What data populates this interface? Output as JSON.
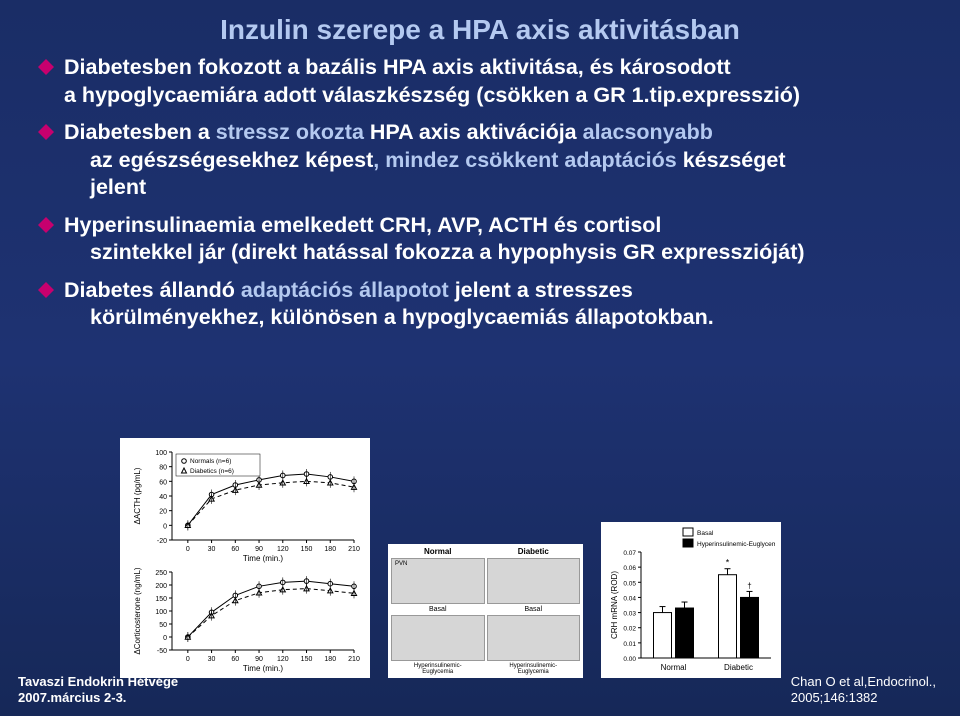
{
  "title": "Inzulin szerepe a HPA axis aktivitásban",
  "bullets": [
    {
      "lines": [
        {
          "segments": [
            {
              "text": "Diabetesben fokozott a bazális HPA axis aktivitása, és károsodott",
              "color": "white"
            }
          ]
        },
        {
          "segments": [
            {
              "text": "a hypoglycaemiára adott válaszkészség (csökken a GR 1.tip.expresszió)",
              "color": "white"
            }
          ]
        }
      ]
    },
    {
      "lines": [
        {
          "segments": [
            {
              "text": "Diabetesben a ",
              "color": "white"
            },
            {
              "text": "stressz okozta",
              "color": "blue"
            },
            {
              "text": "  HPA axis aktivációja ",
              "color": "white"
            },
            {
              "text": "alacsonyabb",
              "color": "blue"
            }
          ]
        },
        {
          "segments": [
            {
              "text": "az egészségesekhez képest",
              "color": "white"
            },
            {
              "text": ", mindez csökkent adaptációs ",
              "color": "blue"
            },
            {
              "text": "készséget",
              "color": "white"
            }
          ],
          "indent": true
        },
        {
          "segments": [
            {
              "text": "jelent",
              "color": "white"
            }
          ],
          "indent": true
        }
      ]
    },
    {
      "lines": [
        {
          "segments": [
            {
              "text": "Hyperinsulinaemia emelkedett CRH, AVP, ACTH és cortisol",
              "color": "white"
            }
          ]
        },
        {
          "segments": [
            {
              "text": "szintekkel jár (direkt hatással fokozza a hypophysis GR expresszióját)",
              "color": "white"
            }
          ],
          "indent": true
        }
      ]
    },
    {
      "lines": [
        {
          "segments": [
            {
              "text": "Diabetes állandó ",
              "color": "white"
            },
            {
              "text": "adaptációs állapotot",
              "color": "blue"
            },
            {
              "text": " jelent a stresszes",
              "color": "white"
            }
          ]
        },
        {
          "segments": [
            {
              "text": "körülményekhez, különösen a hypoglycaemiás állapotokban.",
              "color": "white"
            }
          ],
          "indent": true
        }
      ]
    }
  ],
  "diamond_color": "#c7006e",
  "footer_left_l1": "Tavaszi Endokrin Hétvége",
  "footer_left_l2": "2007.március 2-3.",
  "footer_right_l1": "Chan O et al,Endocrinol.,",
  "footer_right_l2": "2005;146:1382",
  "chart_acth": {
    "ylabel": "ΔACTH (pg/mL)",
    "xlabel": "Time (min.)",
    "ylim": [
      -20,
      100
    ],
    "ytick_step": 20,
    "xlim": [
      -20,
      210
    ],
    "xticks": [
      0,
      30,
      60,
      90,
      120,
      150,
      180,
      210
    ],
    "legend": [
      "Normals (n=6)",
      "Diabetics (n=6)"
    ],
    "series_normals": {
      "x": [
        0,
        30,
        60,
        90,
        120,
        150,
        180,
        210
      ],
      "y": [
        0,
        42,
        55,
        62,
        68,
        70,
        66,
        60
      ],
      "marker": "circle",
      "color": "#000"
    },
    "series_diabetic": {
      "x": [
        0,
        30,
        60,
        90,
        120,
        150,
        180,
        210
      ],
      "y": [
        0,
        36,
        48,
        55,
        58,
        60,
        58,
        52
      ],
      "marker": "triangle",
      "color": "#000",
      "dash": "4,3"
    },
    "background_color": "#ffffff"
  },
  "chart_cort": {
    "ylabel": "ΔCorticosterone (ng/mL)",
    "xlabel": "Time (min.)",
    "ylim": [
      -50,
      250
    ],
    "ytick_step": 50,
    "xlim": [
      -20,
      210
    ],
    "xticks": [
      0,
      30,
      60,
      90,
      120,
      150,
      180,
      210
    ],
    "series_normals": {
      "x": [
        0,
        30,
        60,
        90,
        120,
        150,
        180,
        210
      ],
      "y": [
        0,
        95,
        160,
        195,
        210,
        215,
        205,
        195
      ],
      "marker": "circle",
      "color": "#000"
    },
    "series_diabetic": {
      "x": [
        0,
        30,
        60,
        90,
        120,
        150,
        180,
        210
      ],
      "y": [
        0,
        82,
        140,
        170,
        182,
        186,
        178,
        168
      ],
      "marker": "triangle",
      "color": "#000",
      "dash": "4,3"
    },
    "background_color": "#ffffff"
  },
  "micro": {
    "col_headers": [
      "Normal",
      "Diabetic"
    ],
    "row_labels": [
      "PVN",
      "Basal",
      "Basal",
      "Hyperinsulinemic-Euglycemia",
      "Hyperinsulinemic-Euglycemia"
    ]
  },
  "bar_chart": {
    "ylabel": "CRH mRNA (ROD)",
    "categories": [
      "Normal",
      "Diabetic"
    ],
    "legend": [
      "Basal",
      "Hyperinsulinemic-Euglycemia"
    ],
    "legend_colors": [
      "#ffffff",
      "#000000"
    ],
    "ylim": [
      0,
      0.07
    ],
    "ytick_step": 0.01,
    "series": {
      "Normal": {
        "Basal": 0.03,
        "Hyper": 0.033
      },
      "Diabetic": {
        "Basal": 0.055,
        "Hyper": 0.04
      }
    },
    "bar_border": "#000"
  }
}
